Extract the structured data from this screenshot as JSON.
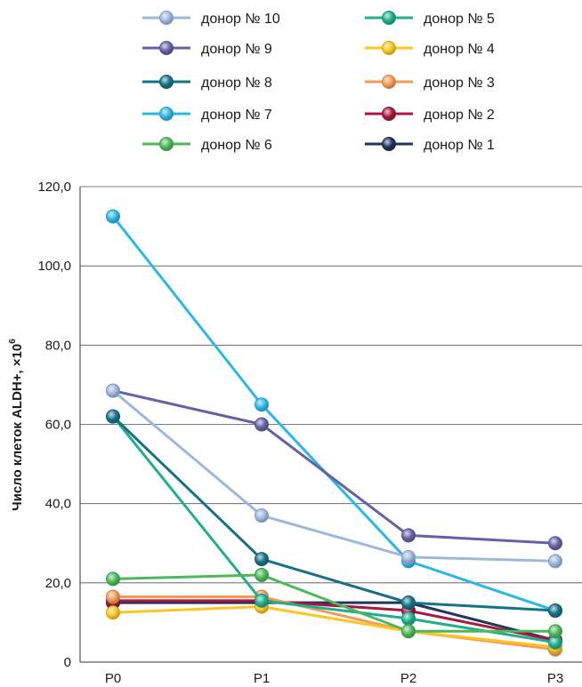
{
  "chart_data": {
    "type": "line",
    "categories": [
      "P0",
      "P1",
      "P2",
      "P3"
    ],
    "ylabel": "Число клеток ALDH+, ×10",
    "ylabel_sup": "6",
    "ylim": [
      0,
      120
    ],
    "yticks": [
      {
        "value": 0,
        "label": "0"
      },
      {
        "value": 20,
        "label": "20,0"
      },
      {
        "value": 40,
        "label": "40,0"
      },
      {
        "value": 60,
        "label": "60,0"
      },
      {
        "value": 80,
        "label": "80,0"
      },
      {
        "value": 100,
        "label": "100,0"
      },
      {
        "value": 120,
        "label": "120,0"
      }
    ],
    "grid": true,
    "legend_position": "top",
    "series": [
      {
        "name": "донор № 10",
        "color": "#9db7dd",
        "values": [
          68.5,
          37,
          26.5,
          25.5
        ]
      },
      {
        "name": "донор № 9",
        "color": "#6461a8",
        "values": [
          68.5,
          60,
          32,
          30
        ]
      },
      {
        "name": "донор № 8",
        "color": "#157187",
        "values": [
          62,
          26,
          15,
          13
        ]
      },
      {
        "name": "донор № 7",
        "color": "#2bb8e6",
        "values": [
          112.5,
          65,
          25.5,
          13
        ]
      },
      {
        "name": "донор № 6",
        "color": "#4db85a",
        "values": [
          21,
          22,
          7.8,
          7.8
        ]
      },
      {
        "name": "донор № 5",
        "color": "#1fae8f",
        "values": [
          62,
          15.5,
          11,
          5
        ]
      },
      {
        "name": "донор № 4",
        "color": "#fcc520",
        "values": [
          12.5,
          14,
          7.8,
          3.8
        ]
      },
      {
        "name": "донор № 3",
        "color": "#f29a56",
        "values": [
          16.5,
          16.5,
          7.8,
          3.2
        ]
      },
      {
        "name": "донор № 2",
        "color": "#a8173e",
        "values": [
          15.5,
          15.5,
          13,
          5.5
        ]
      },
      {
        "name": "донор № 1",
        "color": "#23335c",
        "values": [
          15,
          15,
          15,
          5.5
        ]
      }
    ]
  }
}
